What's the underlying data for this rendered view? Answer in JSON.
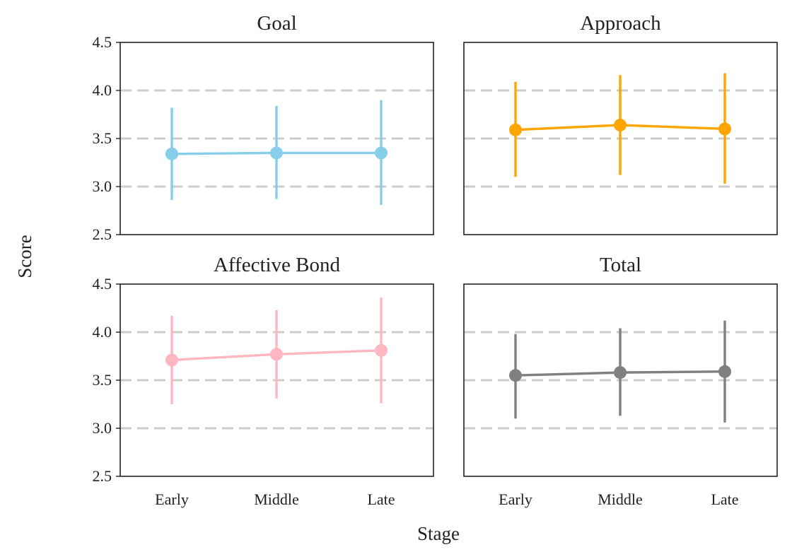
{
  "chart_data": {
    "type": "line",
    "layout": "2x2 grid, shared x and y axes",
    "xlabel": "Stage",
    "ylabel": "Score",
    "categories": [
      "Early",
      "Middle",
      "Late"
    ],
    "ylim": [
      2.5,
      4.5
    ],
    "yticks": [
      "2.5",
      "3.0",
      "3.5",
      "4.0",
      "4.5"
    ],
    "grid_values": [
      3.0,
      3.5,
      4.0
    ],
    "grid": "horizontal dashed",
    "panels": [
      {
        "title": "Goal",
        "color": "#87ceeb",
        "values": [
          3.34,
          3.35,
          3.35
        ],
        "ci_low": [
          2.86,
          2.87,
          2.81
        ],
        "ci_high": [
          3.82,
          3.84,
          3.9
        ]
      },
      {
        "title": "Approach",
        "color": "#ffa500",
        "values": [
          3.59,
          3.64,
          3.6
        ],
        "ci_low": [
          3.1,
          3.12,
          3.03
        ],
        "ci_high": [
          4.09,
          4.16,
          4.18
        ]
      },
      {
        "title": "Affective Bond",
        "color": "#ffb6c1",
        "values": [
          3.71,
          3.77,
          3.81
        ],
        "ci_low": [
          3.25,
          3.31,
          3.26
        ],
        "ci_high": [
          4.17,
          4.23,
          4.36
        ]
      },
      {
        "title": "Total",
        "color": "#808080",
        "values": [
          3.55,
          3.58,
          3.59
        ],
        "ci_low": [
          3.1,
          3.13,
          3.06
        ],
        "ci_high": [
          3.98,
          4.04,
          4.12
        ]
      }
    ]
  }
}
